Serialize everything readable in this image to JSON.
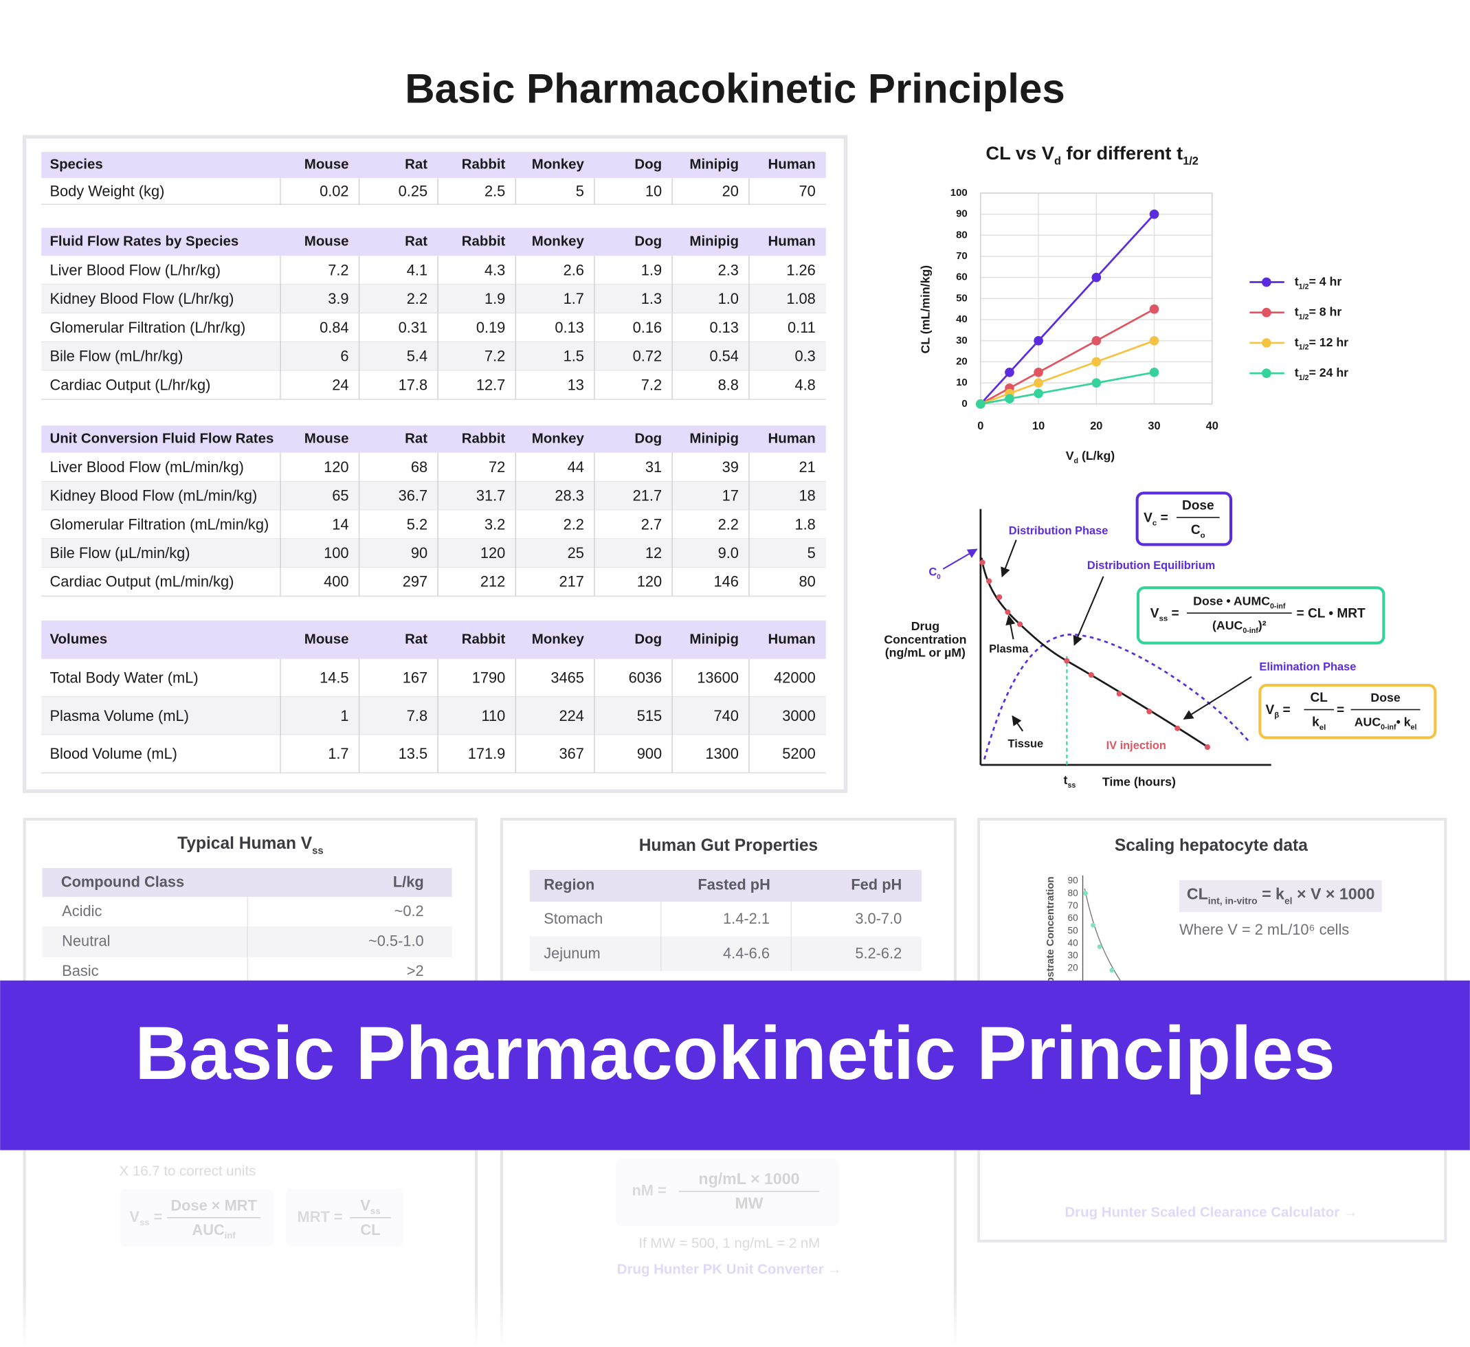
{
  "title": "Basic Pharmacokinetic Principles",
  "tables": [
    {
      "header": [
        "Species",
        "Mouse",
        "Rat",
        "Rabbit",
        "Monkey",
        "Dog",
        "Minipig",
        "Human"
      ],
      "rows": [
        [
          "Body Weight (kg)",
          "0.02",
          "0.25",
          "2.5",
          "5",
          "10",
          "20",
          "70"
        ]
      ]
    },
    {
      "header": [
        "Fluid Flow Rates by Species",
        "Mouse",
        "Rat",
        "Rabbit",
        "Monkey",
        "Dog",
        "Minipig",
        "Human"
      ],
      "rows": [
        [
          "Liver Blood Flow (L/hr/kg)",
          "7.2",
          "4.1",
          "4.3",
          "2.6",
          "1.9",
          "2.3",
          "1.26"
        ],
        [
          "Kidney Blood Flow (L/hr/kg)",
          "3.9",
          "2.2",
          "1.9",
          "1.7",
          "1.3",
          "1.0",
          "1.08"
        ],
        [
          "Glomerular Filtration (L/hr/kg)",
          "0.84",
          "0.31",
          "0.19",
          "0.13",
          "0.16",
          "0.13",
          "0.11"
        ],
        [
          "Bile Flow (mL/hr/kg)",
          "6",
          "5.4",
          "7.2",
          "1.5",
          "0.72",
          "0.54",
          "0.3"
        ],
        [
          "Cardiac Output (L/hr/kg)",
          "24",
          "17.8",
          "12.7",
          "13",
          "7.2",
          "8.8",
          "4.8"
        ]
      ]
    },
    {
      "header": [
        "Unit Conversion Fluid Flow Rates",
        "Mouse",
        "Rat",
        "Rabbit",
        "Monkey",
        "Dog",
        "Minipig",
        "Human"
      ],
      "rows": [
        [
          "Liver Blood Flow (mL/min/kg)",
          "120",
          "68",
          "72",
          "44",
          "31",
          "39",
          "21"
        ],
        [
          "Kidney Blood Flow (mL/min/kg)",
          "65",
          "36.7",
          "31.7",
          "28.3",
          "21.7",
          "17",
          "18"
        ],
        [
          "Glomerular Filtration (mL/min/kg)",
          "14",
          "5.2",
          "3.2",
          "2.2",
          "2.7",
          "2.2",
          "1.8"
        ],
        [
          "Bile Flow (µL/min/kg)",
          "100",
          "90",
          "120",
          "25",
          "12",
          "9.0",
          "5"
        ],
        [
          "Cardiac Output (mL/min/kg)",
          "400",
          "297",
          "212",
          "217",
          "120",
          "146",
          "80"
        ]
      ]
    },
    {
      "header": [
        "Volumes",
        "Mouse",
        "Rat",
        "Rabbit",
        "Monkey",
        "Dog",
        "Minipig",
        "Human"
      ],
      "rows": [
        [
          "Total Body Water (mL)",
          "14.5",
          "167",
          "1790",
          "3465",
          "6036",
          "13600",
          "42000"
        ],
        [
          "Plasma Volume (mL)",
          "1",
          "7.8",
          "110",
          "224",
          "515",
          "740",
          "3000"
        ],
        [
          "Blood Volume (mL)",
          "1.7",
          "13.5",
          "171.9",
          "367",
          "900",
          "1300",
          "5200"
        ]
      ]
    }
  ],
  "chart_data": {
    "type": "line",
    "title": [
      "CL vs V",
      "d",
      " for different t",
      "1/2"
    ],
    "x_label": [
      "V",
      "d",
      " (L/kg)"
    ],
    "y_label": "CL (mL/min/kg)",
    "x": [
      0,
      5,
      10,
      20,
      30
    ],
    "xlim": [
      0,
      40
    ],
    "xticks": [
      0,
      10,
      20,
      30,
      40
    ],
    "ylim": [
      0,
      100
    ],
    "yticks": [
      0,
      10,
      20,
      30,
      40,
      50,
      60,
      70,
      80,
      90,
      100
    ],
    "grid": true,
    "legend": "right",
    "series": [
      {
        "name": [
          "t",
          "1/2",
          "= 4 hr"
        ],
        "color": "#5b2be0",
        "values": [
          0,
          15,
          30,
          60,
          90
        ]
      },
      {
        "name": [
          "t",
          "1/2",
          "= 8 hr"
        ],
        "color": "#e05561",
        "values": [
          0,
          7.5,
          15,
          30,
          45
        ]
      },
      {
        "name": [
          "t",
          "1/2",
          "= 12 hr"
        ],
        "color": "#f5c242",
        "values": [
          0,
          5,
          10,
          20,
          30
        ]
      },
      {
        "name": [
          "t",
          "1/2",
          "= 24 hr"
        ],
        "color": "#34d39a",
        "values": [
          0,
          2.5,
          5,
          10,
          15
        ]
      }
    ]
  },
  "diagram": {
    "distribution_phase": "Distribution Phase",
    "c0": [
      "C",
      "0"
    ],
    "distribution_equilibrium": "Distribution Equilibrium",
    "y_label": [
      "Drug",
      "Concentration",
      "(ng/mL or µM)"
    ],
    "plasma": "Plasma",
    "elimination_phase": "Elimination Phase",
    "tissue": "Tissue",
    "iv_injection": "IV injection",
    "tss": [
      "t",
      "ss"
    ],
    "x_label": "Time (hours)",
    "vc": {
      "lhs": [
        "V",
        "c",
        " ="
      ],
      "num": [
        "Dose"
      ],
      "den": [
        "C",
        "o"
      ]
    },
    "vss": {
      "lhs": [
        "V",
        "ss",
        " ="
      ],
      "num": [
        "Dose • AUMC",
        "0-inf"
      ],
      "den": [
        "(AUC",
        "0-inf",
        ")²"
      ],
      "rhs": "= CL • MRT"
    },
    "vb": {
      "lhs": [
        "V",
        "β",
        " ="
      ],
      "num": [
        "CL"
      ],
      "den": [
        "k",
        "el"
      ],
      "eq": "=",
      "num2": [
        "Dose"
      ],
      "den2": [
        "AUC",
        "0-inf",
        "• k",
        "el"
      ]
    }
  },
  "vss_panel": {
    "title": [
      "Typical Human V",
      "ss"
    ],
    "header": [
      "Compound Class",
      "L/kg"
    ],
    "rows": [
      [
        "Acidic",
        "~0.2"
      ],
      [
        "Neutral",
        "~0.5-1.0"
      ],
      [
        "Basic",
        ">2"
      ]
    ]
  },
  "gut_panel": {
    "title": "Human Gut Properties",
    "header": [
      "Region",
      "Fasted pH",
      "Fed pH"
    ],
    "rows": [
      [
        "Stomach",
        "1.4-2.1",
        "3.0-7.0"
      ],
      [
        "Jejunum",
        "4.4-6.6",
        "5.2-6.2"
      ]
    ]
  },
  "hepatocyte_panel": {
    "title": "Scaling hepatocyte data",
    "y_label": "Substrate Concentration",
    "yticks": [
      90,
      80,
      70,
      60,
      50,
      40,
      30,
      20
    ],
    "formula": [
      "CL",
      "int, in-vitro",
      " = k",
      "el",
      " × V × 1000"
    ],
    "note": "Where V = 2 mL/10⁶ cells"
  },
  "banner_title": "Basic Pharmacokinetic Principles",
  "faded": {
    "correct_units": "X 16.7 to correct units",
    "vss_formula": {
      "lhs": [
        "V",
        "ss",
        " ="
      ],
      "num": [
        "Dose × MRT"
      ],
      "den": [
        "AUC",
        "inf"
      ]
    },
    "mrt_formula": {
      "lhs": [
        "MRT ="
      ],
      "num": [
        "V",
        "ss"
      ],
      "den": [
        "CL"
      ]
    },
    "nm_formula": {
      "lhs": [
        "nM ="
      ],
      "num": [
        "ng/mL × 1000"
      ],
      "den": [
        "MW"
      ]
    },
    "nm_example": "If MW = 500, 1 ng/mL = 2 nM",
    "pk_link": "Drug Hunter PK Unit Converter →",
    "clearance_link": "Drug Hunter Scaled Clearance Calculator →"
  }
}
